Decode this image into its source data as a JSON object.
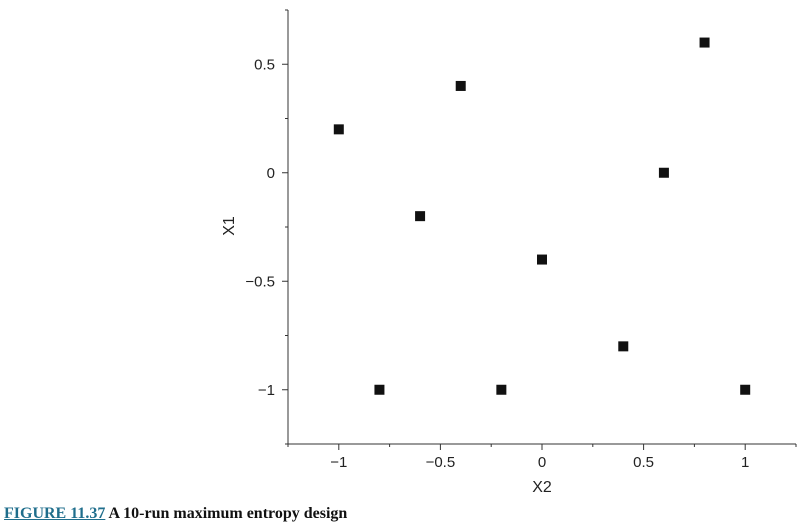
{
  "chart_data": {
    "type": "scatter",
    "title": "",
    "xlabel": "X2",
    "ylabel": "X1",
    "xlim": [
      -1.25,
      1.25
    ],
    "ylim": [
      -1.25,
      0.75
    ],
    "x_ticks": [
      -1,
      -0.5,
      0,
      0.5,
      1
    ],
    "x_tick_labels": [
      "−1",
      "−0.5",
      "0",
      "0.5",
      "1"
    ],
    "y_ticks": [
      0.5,
      0,
      -0.5,
      -1
    ],
    "y_tick_labels": [
      "0.5",
      "0",
      "−0.5",
      "−1"
    ],
    "grid": false,
    "marker": "square",
    "marker_color": "#111111",
    "points": [
      {
        "x": -1.0,
        "y": 0.2
      },
      {
        "x": -0.8,
        "y": -1.0
      },
      {
        "x": -0.6,
        "y": -0.2
      },
      {
        "x": -0.4,
        "y": 0.4
      },
      {
        "x": -0.2,
        "y": -1.0
      },
      {
        "x": 0.0,
        "y": -0.4
      },
      {
        "x": 0.4,
        "y": -0.8
      },
      {
        "x": 0.6,
        "y": 0.0
      },
      {
        "x": 0.8,
        "y": 0.6
      },
      {
        "x": 1.0,
        "y": -1.0
      }
    ]
  },
  "caption": {
    "figure_label": "FIGURE 11.37",
    "text": "A 10-run maximum entropy design"
  }
}
